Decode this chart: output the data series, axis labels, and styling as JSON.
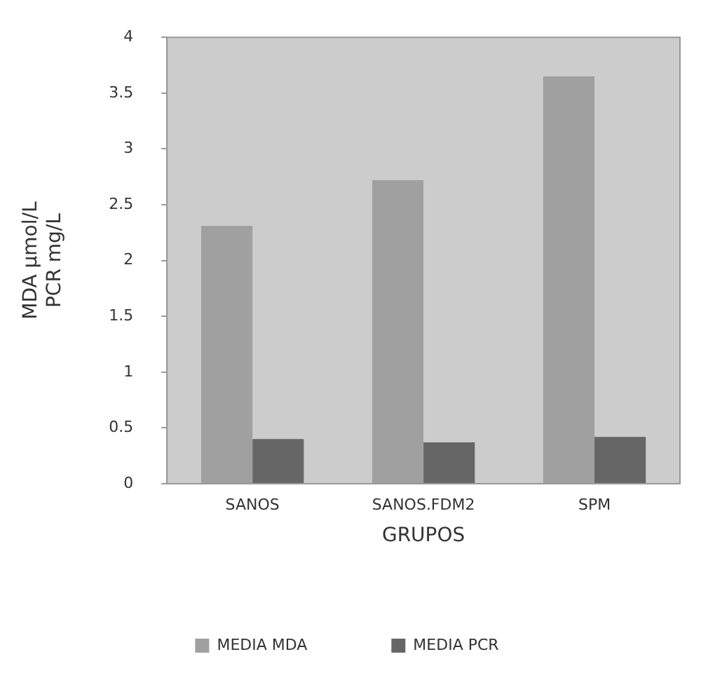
{
  "chart_data": {
    "type": "bar",
    "xlabel": "GRUPOS",
    "ylabel": "MDA µmol/L\nPCR mg/L",
    "categories": [
      "SANOS",
      "SANOS.FDM2",
      "SPM"
    ],
    "series": [
      {
        "name": "MEDIA MDA",
        "color": "#a0a0a0",
        "values": [
          2.31,
          2.72,
          3.65
        ]
      },
      {
        "name": "MEDIA PCR",
        "color": "#666666",
        "values": [
          0.4,
          0.37,
          0.42
        ]
      }
    ],
    "ylim": [
      0,
      4
    ],
    "yticks": [
      0,
      0.5,
      1,
      1.5,
      2,
      2.5,
      3,
      3.5,
      4
    ],
    "grid": false,
    "legend": "bottom"
  }
}
